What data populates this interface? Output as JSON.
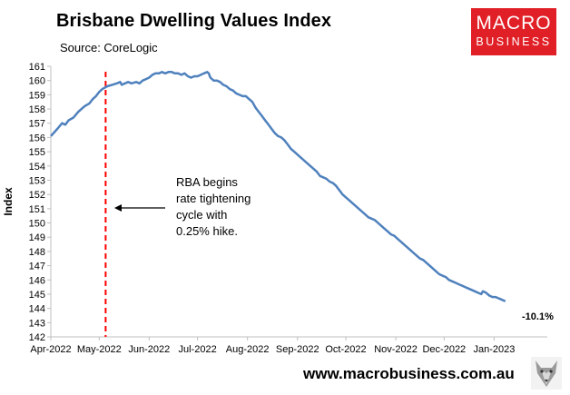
{
  "header": {
    "title": "Brisbane Dwelling Values Index",
    "source": "Source: CoreLogic"
  },
  "brand": {
    "logo_line1": "MACRO",
    "logo_line2": "BUSINESS",
    "website": "www.macrobusiness.com.au",
    "logo_color": "#e11f26"
  },
  "chart_data": {
    "type": "line",
    "title": "Brisbane Dwelling Values Index",
    "ylabel": "Index",
    "xlabel": "",
    "ylim": [
      142,
      161
    ],
    "yticks": [
      142,
      143,
      144,
      145,
      146,
      147,
      148,
      149,
      150,
      151,
      152,
      153,
      154,
      155,
      156,
      157,
      158,
      159,
      160,
      161
    ],
    "xlim": [
      0,
      308
    ],
    "xticks": [
      {
        "label": "Apr-2022",
        "day": 0
      },
      {
        "label": "May-2022",
        "day": 30
      },
      {
        "label": "Jun-2022",
        "day": 61
      },
      {
        "label": "Jul-2022",
        "day": 91
      },
      {
        "label": "Aug-2022",
        "day": 122
      },
      {
        "label": "Sep-2022",
        "day": 153
      },
      {
        "label": "Oct-2022",
        "day": 183
      },
      {
        "label": "Nov-2022",
        "day": 214
      },
      {
        "label": "Dec-2022",
        "day": 244
      },
      {
        "label": "Jan-2023",
        "day": 275
      }
    ],
    "series": [
      {
        "name": "Brisbane Dwelling Values Index",
        "color": "#4f81bd",
        "points": [
          [
            0,
            156.1
          ],
          [
            4,
            156.6
          ],
          [
            7,
            157.0
          ],
          [
            9,
            156.9
          ],
          [
            11,
            157.2
          ],
          [
            14,
            157.4
          ],
          [
            17,
            157.8
          ],
          [
            19,
            158.0
          ],
          [
            21,
            158.2
          ],
          [
            24,
            158.4
          ],
          [
            26,
            158.7
          ],
          [
            28,
            158.9
          ],
          [
            30,
            159.2
          ],
          [
            32,
            159.4
          ],
          [
            35,
            159.6
          ],
          [
            38,
            159.7
          ],
          [
            41,
            159.8
          ],
          [
            43,
            159.9
          ],
          [
            44,
            159.7
          ],
          [
            46,
            159.8
          ],
          [
            48,
            159.9
          ],
          [
            50,
            159.8
          ],
          [
            53,
            159.9
          ],
          [
            55,
            159.8
          ],
          [
            57,
            160.0
          ],
          [
            59,
            160.1
          ],
          [
            61,
            160.2
          ],
          [
            63,
            160.4
          ],
          [
            65,
            160.5
          ],
          [
            67,
            160.5
          ],
          [
            69,
            160.6
          ],
          [
            71,
            160.5
          ],
          [
            73,
            160.6
          ],
          [
            75,
            160.6
          ],
          [
            77,
            160.5
          ],
          [
            79,
            160.5
          ],
          [
            81,
            160.4
          ],
          [
            83,
            160.5
          ],
          [
            85,
            160.3
          ],
          [
            87,
            160.2
          ],
          [
            89,
            160.3
          ],
          [
            91,
            160.3
          ],
          [
            93,
            160.4
          ],
          [
            95,
            160.5
          ],
          [
            97,
            160.6
          ],
          [
            98,
            160.5
          ],
          [
            99,
            160.2
          ],
          [
            101,
            160.0
          ],
          [
            103,
            160.0
          ],
          [
            105,
            159.9
          ],
          [
            107,
            159.7
          ],
          [
            109,
            159.6
          ],
          [
            111,
            159.4
          ],
          [
            113,
            159.3
          ],
          [
            115,
            159.1
          ],
          [
            117,
            159.0
          ],
          [
            119,
            158.9
          ],
          [
            121,
            158.9
          ],
          [
            123,
            158.7
          ],
          [
            125,
            158.5
          ],
          [
            127,
            158.1
          ],
          [
            129,
            157.8
          ],
          [
            131,
            157.5
          ],
          [
            133,
            157.2
          ],
          [
            135,
            156.9
          ],
          [
            137,
            156.6
          ],
          [
            139,
            156.3
          ],
          [
            141,
            156.1
          ],
          [
            143,
            156.0
          ],
          [
            145,
            155.8
          ],
          [
            147,
            155.5
          ],
          [
            149,
            155.2
          ],
          [
            151,
            155.0
          ],
          [
            153,
            154.8
          ],
          [
            155,
            154.6
          ],
          [
            157,
            154.4
          ],
          [
            159,
            154.2
          ],
          [
            161,
            154.0
          ],
          [
            163,
            153.8
          ],
          [
            165,
            153.6
          ],
          [
            167,
            153.3
          ],
          [
            169,
            153.2
          ],
          [
            171,
            153.1
          ],
          [
            173,
            152.9
          ],
          [
            175,
            152.8
          ],
          [
            177,
            152.6
          ],
          [
            179,
            152.3
          ],
          [
            181,
            152.0
          ],
          [
            183,
            151.8
          ],
          [
            185,
            151.6
          ],
          [
            187,
            151.4
          ],
          [
            189,
            151.2
          ],
          [
            191,
            151.0
          ],
          [
            193,
            150.8
          ],
          [
            195,
            150.6
          ],
          [
            197,
            150.4
          ],
          [
            199,
            150.3
          ],
          [
            201,
            150.2
          ],
          [
            203,
            150.0
          ],
          [
            205,
            149.8
          ],
          [
            207,
            149.6
          ],
          [
            209,
            149.4
          ],
          [
            211,
            149.2
          ],
          [
            213,
            149.1
          ],
          [
            215,
            148.9
          ],
          [
            217,
            148.7
          ],
          [
            219,
            148.5
          ],
          [
            221,
            148.3
          ],
          [
            223,
            148.1
          ],
          [
            225,
            147.9
          ],
          [
            227,
            147.7
          ],
          [
            229,
            147.5
          ],
          [
            231,
            147.4
          ],
          [
            233,
            147.2
          ],
          [
            235,
            147.0
          ],
          [
            237,
            146.8
          ],
          [
            239,
            146.6
          ],
          [
            241,
            146.4
          ],
          [
            243,
            146.3
          ],
          [
            245,
            146.2
          ],
          [
            247,
            146.0
          ],
          [
            249,
            145.9
          ],
          [
            251,
            145.8
          ],
          [
            253,
            145.7
          ],
          [
            255,
            145.6
          ],
          [
            257,
            145.5
          ],
          [
            259,
            145.4
          ],
          [
            261,
            145.3
          ],
          [
            263,
            145.2
          ],
          [
            265,
            145.1
          ],
          [
            267,
            145.0
          ],
          [
            268,
            145.2
          ],
          [
            270,
            145.1
          ],
          [
            272,
            144.9
          ],
          [
            274,
            144.8
          ],
          [
            276,
            144.8
          ],
          [
            278,
            144.7
          ],
          [
            280,
            144.6
          ],
          [
            282,
            144.5
          ]
        ]
      }
    ],
    "events": [
      {
        "label": "RBA hike marker",
        "day": 34
      }
    ],
    "annotations": {
      "rba_text": [
        "RBA begins",
        "rate tightening",
        "cycle with",
        "0.25% hike."
      ],
      "end_label": "-10.1%"
    }
  }
}
